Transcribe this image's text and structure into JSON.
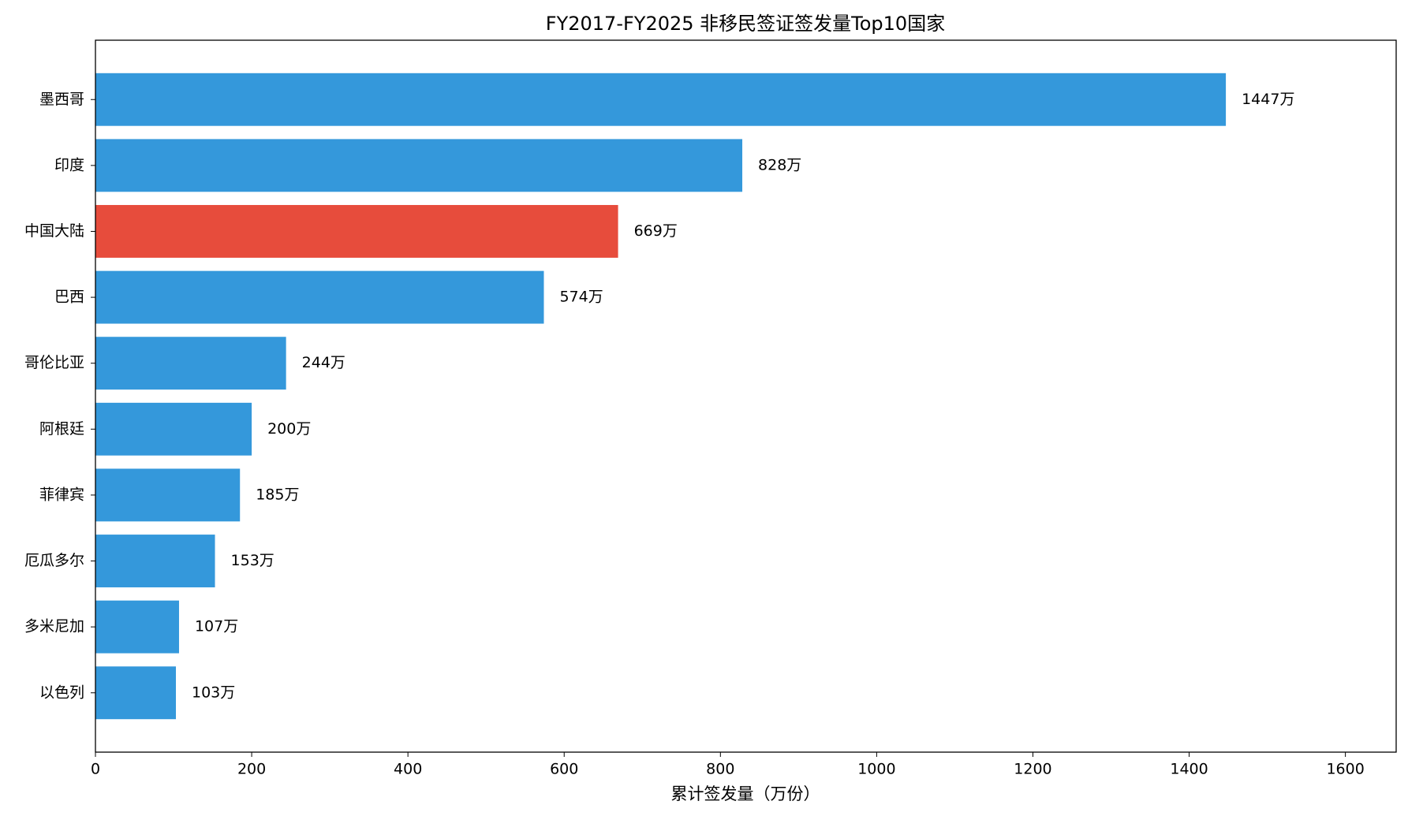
{
  "chart_data": {
    "type": "barh",
    "title": "FY2017-FY2025 非移民签证签发量Top10国家",
    "x_label": "累计签发量（万份）",
    "categories": [
      "墨西哥",
      "印度",
      "中国大陆",
      "巴西",
      "哥伦比亚",
      "阿根廷",
      "菲律宾",
      "厄瓜多尔",
      "多米尼加",
      "以色列"
    ],
    "values": [
      1447,
      828,
      669,
      574,
      244,
      200,
      185,
      153,
      107,
      103
    ],
    "value_labels": [
      "1447万",
      "828万",
      "669万",
      "574万",
      "244万",
      "200万",
      "185万",
      "153万",
      "107万",
      "103万"
    ],
    "colors": [
      "#3498db",
      "#3498db",
      "#e74c3c",
      "#3498db",
      "#3498db",
      "#3498db",
      "#3498db",
      "#3498db",
      "#3498db",
      "#3498db"
    ],
    "xlim": [
      0,
      1665
    ],
    "xticks": [
      0,
      200,
      400,
      600,
      800,
      1000,
      1200,
      1400,
      1600
    ],
    "grid": false
  }
}
